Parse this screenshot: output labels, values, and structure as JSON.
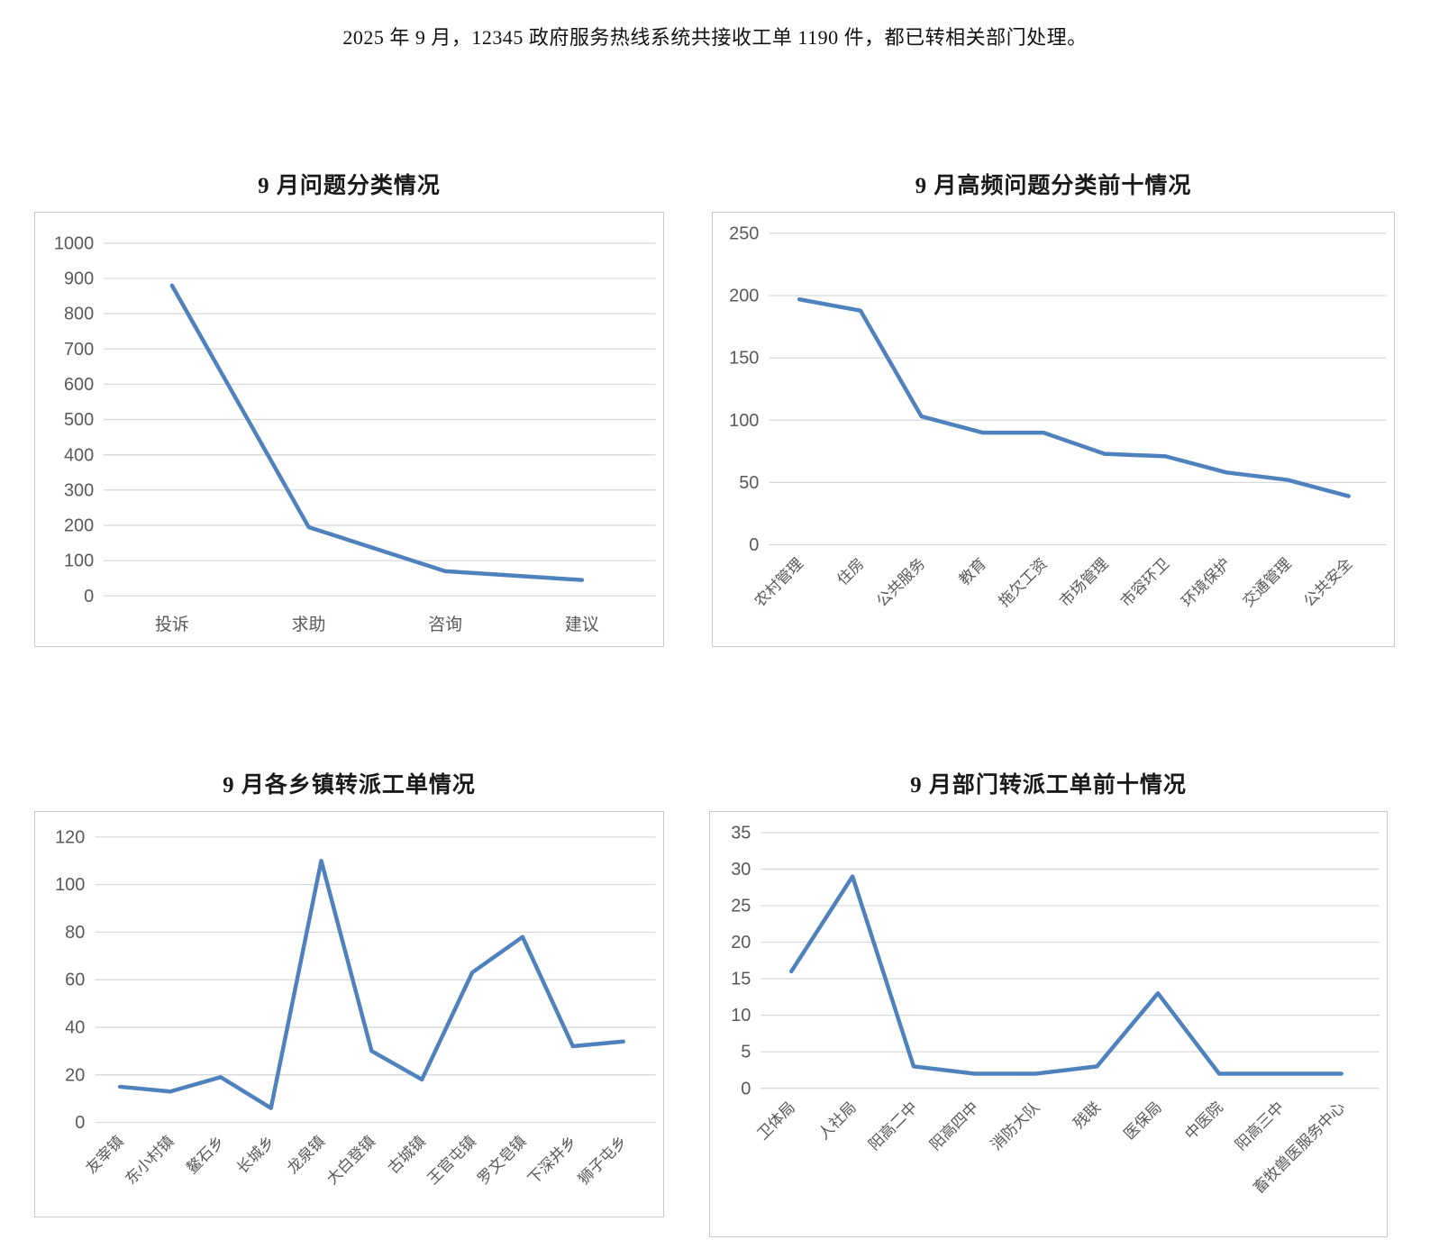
{
  "document": {
    "intro_text": "2025 年 9 月，12345 政府服务热线系统共接收工单 1190 件，都已转相关部门处理。"
  },
  "colors": {
    "line": "#4f81bd",
    "grid": "#d9d9d9",
    "axis_text": "#595959",
    "frame_border": "#c9c9c9"
  },
  "chart_data": [
    {
      "type": "line",
      "title": "9 月问题分类情况",
      "categories": [
        "投诉",
        "求助",
        "咨询",
        "建议"
      ],
      "values": [
        880,
        195,
        70,
        45
      ],
      "xlabel": "",
      "ylabel": "",
      "ylim": [
        0,
        1000
      ],
      "ystep": 100,
      "grid": true,
      "legend": "none",
      "rotated_labels": false
    },
    {
      "type": "line",
      "title": "9 月高频问题分类前十情况",
      "categories": [
        "农村管理",
        "住房",
        "公共服务",
        "教育",
        "拖欠工资",
        "市场管理",
        "市容环卫",
        "环境保护",
        "交通管理",
        "公共安全"
      ],
      "values": [
        197,
        188,
        103,
        90,
        90,
        73,
        71,
        58,
        52,
        39
      ],
      "xlabel": "",
      "ylabel": "",
      "ylim": [
        0,
        250
      ],
      "ystep": 50,
      "grid": true,
      "legend": "none",
      "rotated_labels": true
    },
    {
      "type": "line",
      "title": "9 月各乡镇转派工单情况",
      "categories": [
        "友宰镇",
        "东小村镇",
        "鳌石乡",
        "长城乡",
        "龙泉镇",
        "大白登镇",
        "古城镇",
        "王官屯镇",
        "罗文皂镇",
        "下深井乡",
        "狮子屯乡"
      ],
      "values": [
        15,
        13,
        19,
        6,
        110,
        30,
        18,
        63,
        78,
        32,
        34
      ],
      "xlabel": "",
      "ylabel": "",
      "ylim": [
        0,
        120
      ],
      "ystep": 20,
      "grid": true,
      "legend": "none",
      "rotated_labels": true
    },
    {
      "type": "line",
      "title": "9 月部门转派工单前十情况",
      "categories": [
        "卫体局",
        "人社局",
        "阳高二中",
        "阳高四中",
        "消防大队",
        "残联",
        "医保局",
        "中医院",
        "阳高三中",
        "畜牧兽医服务中心"
      ],
      "values": [
        16,
        29,
        3,
        2,
        2,
        3,
        13,
        2,
        2,
        2
      ],
      "xlabel": "",
      "ylabel": "",
      "ylim": [
        0,
        35
      ],
      "ystep": 5,
      "grid": true,
      "legend": "none",
      "rotated_labels": true
    }
  ]
}
